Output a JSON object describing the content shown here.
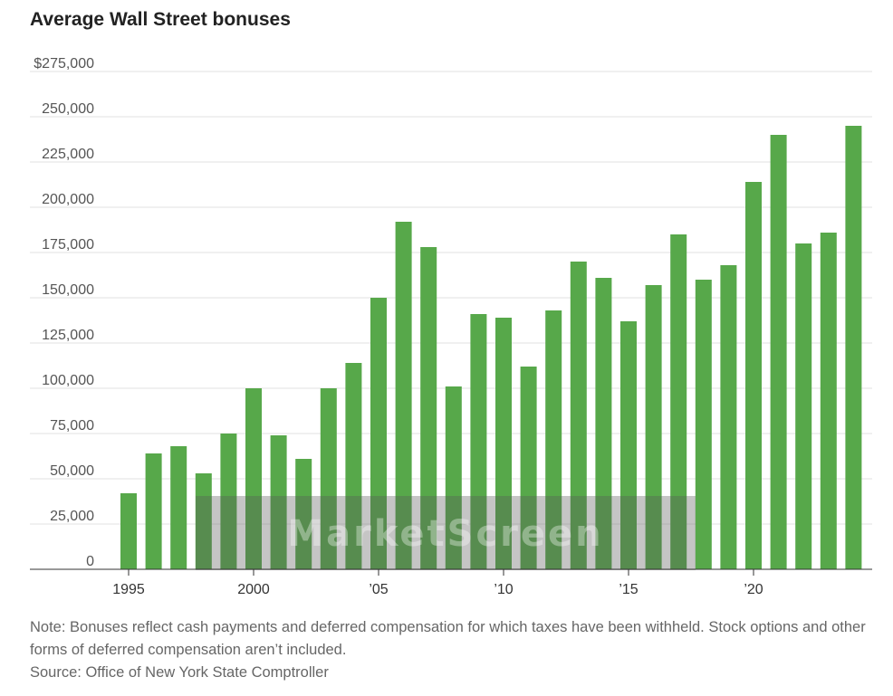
{
  "title": "Average Wall Street bonuses",
  "note": "Note: Bonuses reflect cash payments and deferred compensation for which taxes have been withheld. Stock options and other forms of deferred compensation aren’t included.",
  "source": "Source: Office of New York State Comptroller",
  "watermark": "MarketScreen",
  "colors": {
    "bar": "#57a84a",
    "watermark_box": "#5a5a5a"
  },
  "chart_data": {
    "type": "bar",
    "title": "Average Wall Street bonuses",
    "xlabel": "",
    "ylabel": "",
    "ylim": [
      0,
      275000
    ],
    "grid": true,
    "y_ticks": [
      {
        "value": 0,
        "label": "0"
      },
      {
        "value": 25000,
        "label": "25,000"
      },
      {
        "value": 50000,
        "label": "50,000"
      },
      {
        "value": 75000,
        "label": "75,000"
      },
      {
        "value": 100000,
        "label": "100,000"
      },
      {
        "value": 125000,
        "label": "125,000"
      },
      {
        "value": 150000,
        "label": "150,000"
      },
      {
        "value": 175000,
        "label": "175,000"
      },
      {
        "value": 200000,
        "label": "200,000"
      },
      {
        "value": 225000,
        "label": "225,000"
      },
      {
        "value": 250000,
        "label": "250,000"
      },
      {
        "value": 275000,
        "label": "$275,000"
      }
    ],
    "x_ticks": [
      {
        "year": 1995,
        "label": "1995"
      },
      {
        "year": 2000,
        "label": "2000"
      },
      {
        "year": 2005,
        "label": "’05"
      },
      {
        "year": 2010,
        "label": "’10"
      },
      {
        "year": 2015,
        "label": "’15"
      },
      {
        "year": 2020,
        "label": "’20"
      }
    ],
    "categories": [
      1995,
      1996,
      1997,
      1998,
      1999,
      2000,
      2001,
      2002,
      2003,
      2004,
      2005,
      2006,
      2007,
      2008,
      2009,
      2010,
      2011,
      2012,
      2013,
      2014,
      2015,
      2016,
      2017,
      2018,
      2019,
      2020,
      2021,
      2022,
      2023,
      2024
    ],
    "values": [
      42000,
      64000,
      68000,
      53000,
      75000,
      100000,
      74000,
      61000,
      100000,
      114000,
      150000,
      192000,
      178000,
      101000,
      141000,
      139000,
      112000,
      143000,
      170000,
      161000,
      137000,
      157000,
      185000,
      160000,
      168000,
      214000,
      240000,
      180000,
      186000,
      245000
    ]
  }
}
